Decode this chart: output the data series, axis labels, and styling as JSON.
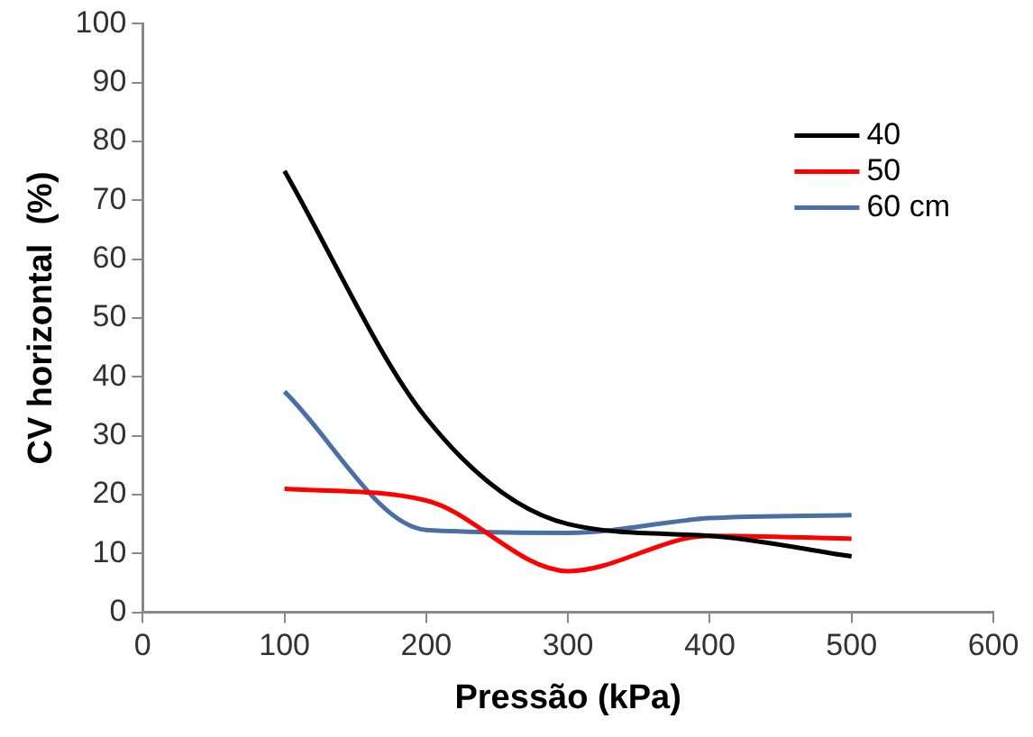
{
  "chart_data": {
    "type": "line",
    "xlabel": "Pressão (kPa)",
    "ylabel": "CV horizontal  (%)",
    "x": [
      100,
      200,
      300,
      400,
      500
    ],
    "series": [
      {
        "name": "40",
        "color": "#000000",
        "values": [
          75,
          33,
          15,
          13,
          9.5
        ]
      },
      {
        "name": "50",
        "color": "#ff0000",
        "values": [
          21,
          19,
          7,
          13,
          12.5
        ]
      },
      {
        "name": "60 cm",
        "color": "#4a6fa5",
        "values": [
          37.5,
          14,
          13.5,
          16,
          16.5
        ]
      }
    ],
    "xlim": [
      0,
      600
    ],
    "xticks": [
      0,
      100,
      200,
      300,
      400,
      500,
      600
    ],
    "ylim": [
      0,
      100
    ],
    "yticks": [
      0,
      10,
      20,
      30,
      40,
      50,
      60,
      70,
      80,
      90,
      100
    ],
    "grid": false,
    "legend": "top right",
    "marker": "none",
    "line_style": "solid"
  }
}
